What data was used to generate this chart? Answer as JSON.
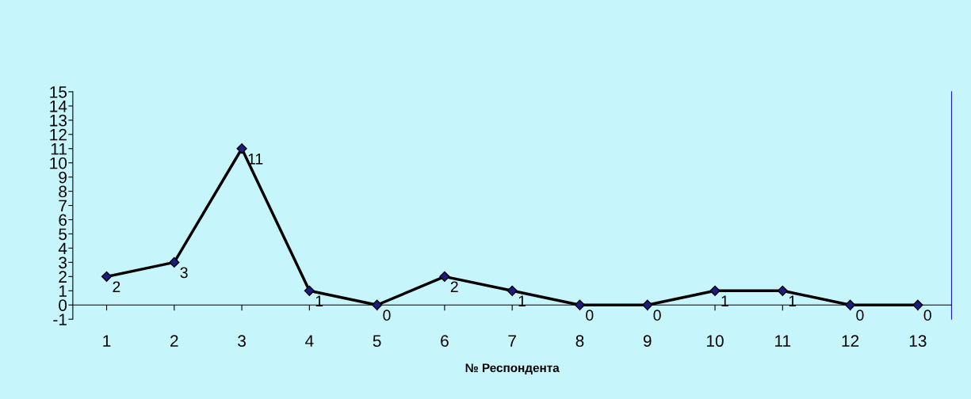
{
  "chart_data": {
    "type": "line",
    "xlabel": "№ Респондента",
    "categories": [
      "1",
      "2",
      "3",
      "4",
      "5",
      "6",
      "7",
      "8",
      "9",
      "10",
      "11",
      "12",
      "13"
    ],
    "series": [
      {
        "color": "#1c1c80",
        "values": [
          2,
          3,
          11,
          1,
          0,
          2,
          1,
          0,
          0,
          1,
          1,
          0,
          0
        ]
      }
    ],
    "ylim": [
      -1,
      15
    ],
    "yticks": [
      -1,
      0,
      1,
      2,
      3,
      4,
      5,
      6,
      7,
      8,
      9,
      10,
      11,
      12,
      13,
      14,
      15
    ],
    "marker": "diamond",
    "line_style": "solid",
    "data_labels": true,
    "grid": false,
    "legend": false
  }
}
